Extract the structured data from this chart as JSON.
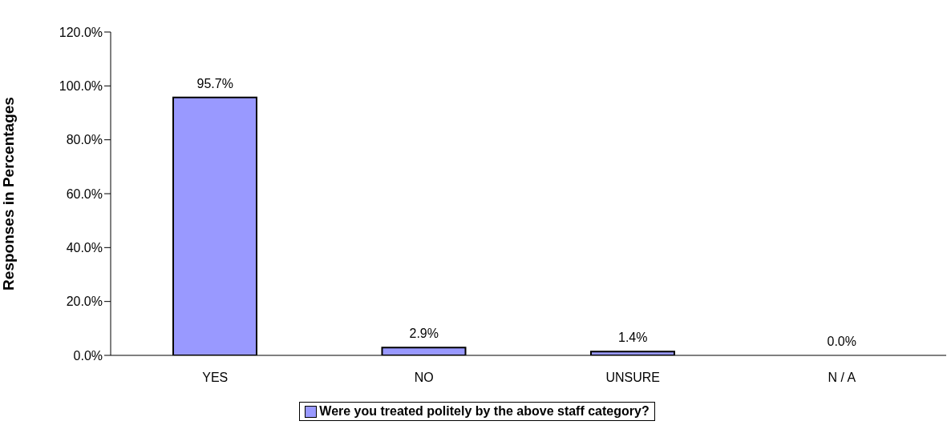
{
  "chart_data": {
    "type": "bar",
    "ylabel": "Responses in Percentages",
    "categories": [
      "YES",
      "NO",
      "UNSURE",
      "N / A"
    ],
    "series": [
      {
        "name": "Were you treated politely by the above staff category?",
        "color": "#9999ff",
        "values": [
          95.7,
          2.9,
          1.4,
          0.0
        ],
        "value_labels": [
          "95.7%",
          "2.9%",
          "1.4%",
          "0.0%"
        ]
      }
    ],
    "ylim": [
      0,
      120
    ],
    "yticks": [
      {
        "value": 0,
        "label": "0.0%"
      },
      {
        "value": 20,
        "label": "20.0%"
      },
      {
        "value": 40,
        "label": "40.0%"
      },
      {
        "value": 60,
        "label": "60.0%"
      },
      {
        "value": 80,
        "label": "80.0%"
      },
      {
        "value": 100,
        "label": "100.0%"
      },
      {
        "value": 120,
        "label": "120.0%"
      }
    ],
    "grid": false,
    "legend": "bottom"
  }
}
